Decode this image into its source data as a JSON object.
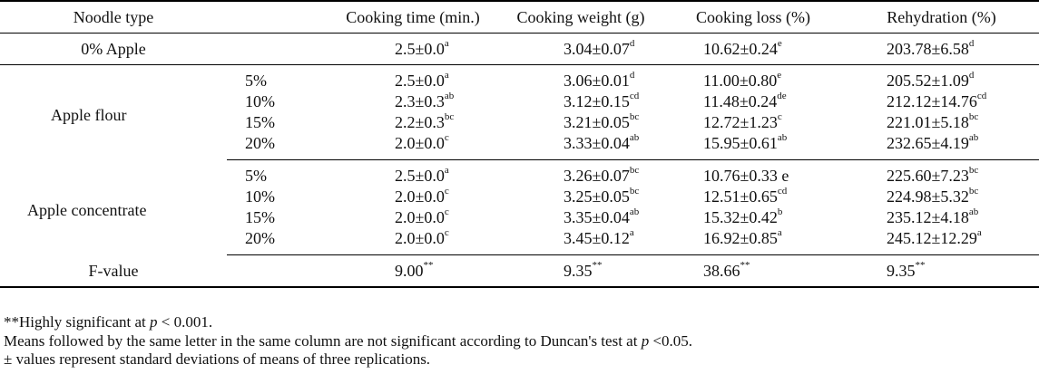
{
  "headers": [
    "Noodle type",
    "",
    "Cooking time (min.)",
    "Cooking weight (g)",
    "Cooking loss (%)",
    "Rehydration (%)"
  ],
  "control": {
    "label": "0% Apple",
    "ct": "2.5±0.0",
    "ct_sup": "a",
    "cw": "3.04±0.07",
    "cw_sup": "d",
    "cl": "10.62±0.24",
    "cl_sup": "e",
    "rh": "203.78±6.58",
    "rh_sup": "d"
  },
  "groups": [
    {
      "label": "Apple flour",
      "rows": [
        {
          "level": "5%",
          "ct": "2.5±0.0",
          "ct_sup": "a",
          "cw": "3.06±0.01",
          "cw_sup": "d",
          "cl": "11.00±0.80",
          "cl_sup": "e",
          "rh": "205.52±1.09",
          "rh_sup": "d"
        },
        {
          "level": "10%",
          "ct": "2.3±0.3",
          "ct_sup": "ab",
          "cw": "3.12±0.15",
          "cw_sup": "cd",
          "cl": "11.48±0.24",
          "cl_sup": "de",
          "rh": "212.12±14.76",
          "rh_sup": "cd"
        },
        {
          "level": "15%",
          "ct": "2.2±0.3",
          "ct_sup": "bc",
          "cw": "3.21±0.05",
          "cw_sup": "bc",
          "cl": "12.72±1.23",
          "cl_sup": "c",
          "rh": "221.01±5.18",
          "rh_sup": "bc"
        },
        {
          "level": "20%",
          "ct": "2.0±0.0",
          "ct_sup": "c",
          "cw": "3.33±0.04",
          "cw_sup": "ab",
          "cl": "15.95±0.61",
          "cl_sup": "ab",
          "rh": "232.65±4.19",
          "rh_sup": "ab"
        }
      ]
    },
    {
      "label": "Apple concentrate",
      "rows": [
        {
          "level": "5%",
          "ct": "2.5±0.0",
          "ct_sup": "a",
          "cw": "3.26±0.07",
          "cw_sup": "bc",
          "cl": "10.76±0.33 e",
          "cl_sup": "",
          "rh": "225.60±7.23",
          "rh_sup": "bc"
        },
        {
          "level": "10%",
          "ct": "2.0±0.0",
          "ct_sup": "c",
          "cw": "3.25±0.05",
          "cw_sup": "bc",
          "cl": "12.51±0.65",
          "cl_sup": "cd",
          "rh": "224.98±5.32",
          "rh_sup": "bc"
        },
        {
          "level": "15%",
          "ct": "2.0±0.0",
          "ct_sup": "c",
          "cw": "3.35±0.04",
          "cw_sup": "ab",
          "cl": "15.32±0.42",
          "cl_sup": "b",
          "rh": "235.12±4.18",
          "rh_sup": "ab"
        },
        {
          "level": "20%",
          "ct": "2.0±0.0",
          "ct_sup": "c",
          "cw": "3.45±0.12",
          "cw_sup": "a",
          "cl": "16.92±0.85",
          "cl_sup": "a",
          "rh": "245.12±12.29",
          "rh_sup": "a"
        }
      ]
    }
  ],
  "fvalue": {
    "label": "F-value",
    "ct": "9.00",
    "ct_sup": "**",
    "cw": "9.35",
    "cw_sup": "**",
    "cl": "38.66",
    "cl_sup": "**",
    "rh": "9.35",
    "rh_sup": "**"
  },
  "notes": {
    "n1_prefix": "**Highly significant at ",
    "n1_p": "p",
    "n1_suffix": " < 0.001.",
    "n2_prefix": "Means followed by the same letter in the same column are not significant according to Duncan's test at ",
    "n2_p": "p",
    "n2_suffix": " <0.05.",
    "n3": "± values represent standard deviations of means of three replications."
  }
}
